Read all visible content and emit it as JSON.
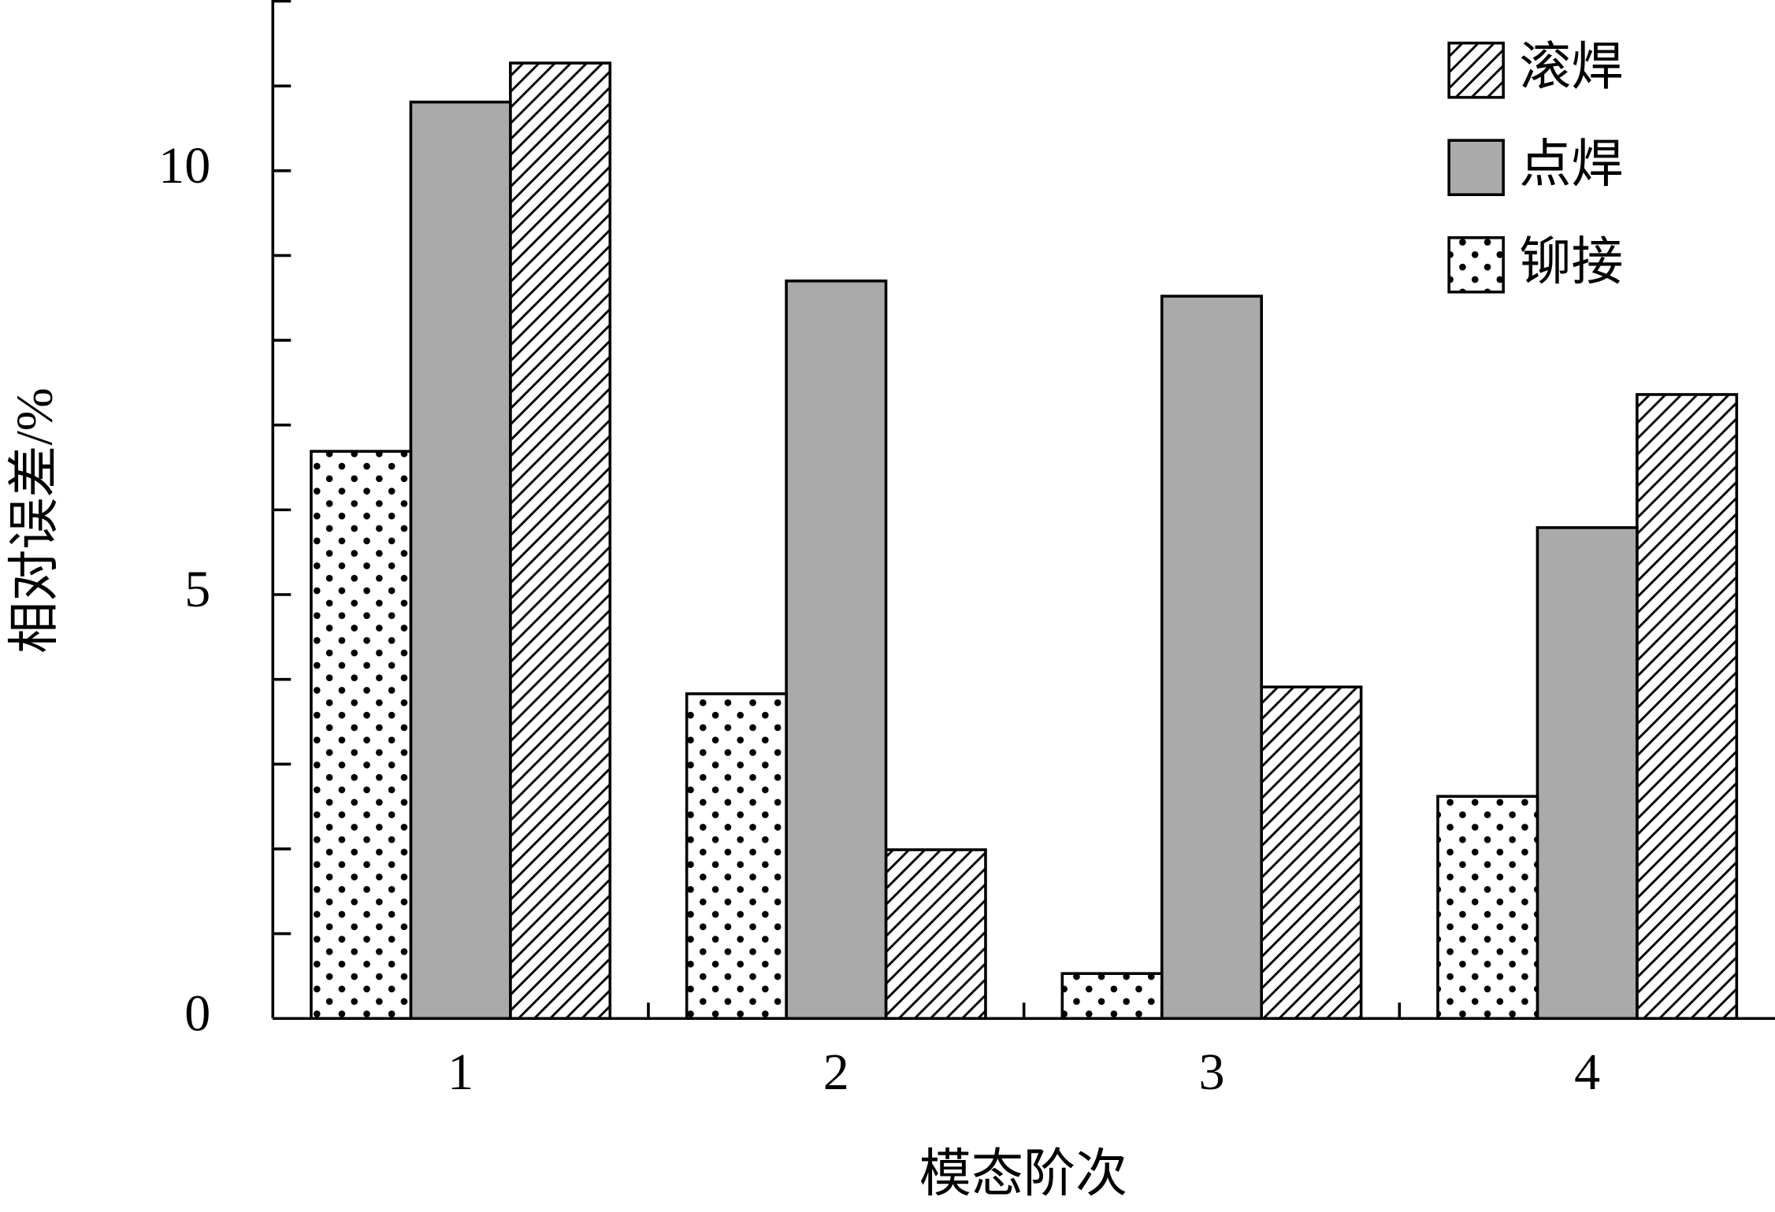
{
  "chart_data": {
    "type": "bar",
    "xlabel": "模态阶次",
    "ylabel": "相对误差/%",
    "categories": [
      "1",
      "2",
      "3",
      "4"
    ],
    "series": [
      {
        "name": "滚焊",
        "color": "#ffffff",
        "pattern": "hatch",
        "values": [
          11.27,
          1.99,
          3.91,
          7.36
        ]
      },
      {
        "name": "点焊",
        "color": "#aaaaaa",
        "pattern": "solid",
        "values": [
          10.81,
          8.7,
          8.52,
          5.79
        ]
      },
      {
        "name": "铆接",
        "color": "#ffffff",
        "pattern": "dots",
        "values": [
          6.69,
          3.83,
          0.53,
          2.62
        ]
      }
    ],
    "ylim": [
      0,
      12
    ],
    "yticks": [
      0,
      5,
      10
    ],
    "yminor_ticks": [
      1,
      2,
      3,
      4,
      6,
      7,
      8,
      9,
      11,
      12
    ],
    "legend": "upper right"
  }
}
